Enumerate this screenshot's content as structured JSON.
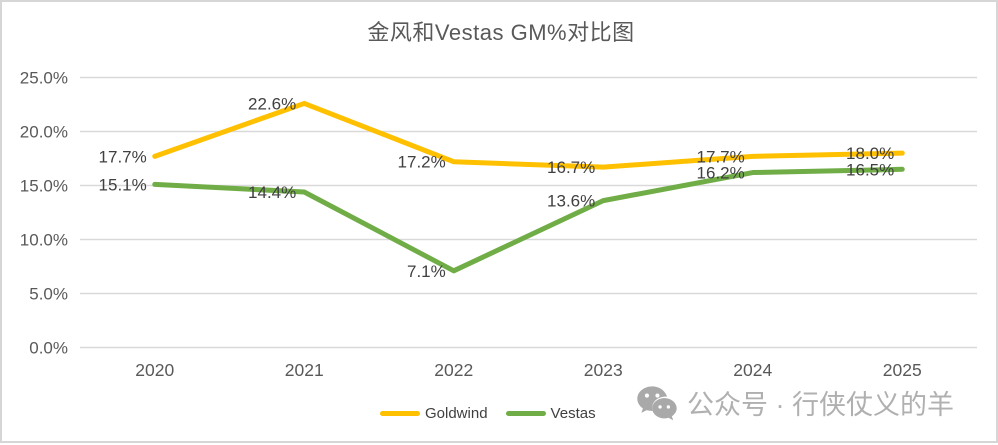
{
  "chart_data": {
    "type": "line",
    "title": "金风和Vestas GM%对比图",
    "categories": [
      "2020",
      "2021",
      "2022",
      "2023",
      "2024",
      "2025"
    ],
    "series": [
      {
        "name": "Goldwind",
        "color": "#FFC000",
        "values": [
          17.7,
          22.6,
          17.2,
          16.7,
          17.7,
          18.0
        ],
        "point_labels": [
          "17.7%",
          "22.6%",
          "17.2%",
          "16.7%",
          "17.7%",
          "18.0%"
        ]
      },
      {
        "name": "Vestas",
        "color": "#70AD47",
        "values": [
          15.1,
          14.4,
          7.1,
          13.6,
          16.2,
          16.5
        ],
        "point_labels": [
          "15.1%",
          "14.4%",
          "7.1%",
          "13.6%",
          "16.2%",
          "16.5%"
        ]
      }
    ],
    "y_axis": {
      "min": 0,
      "max": 25,
      "ticks": [
        {
          "value": 25,
          "label": "25.0%"
        },
        {
          "value": 20,
          "label": "20.0%"
        },
        {
          "value": 15,
          "label": "15.0%"
        },
        {
          "value": 10,
          "label": "10.0%"
        },
        {
          "value": 5,
          "label": "5.0%"
        },
        {
          "value": 0,
          "label": "0.0%"
        }
      ]
    },
    "grid": true,
    "legend_position": "bottom-center"
  },
  "colors": {
    "gridline": "#D9D9D9",
    "axis_text": "#595959",
    "data_label_text": "#404040",
    "title_text": "#595959",
    "legend_text": "#404040",
    "watermark": "#ABABAB",
    "border": "#D6D6D6",
    "background": "#FFFFFF"
  },
  "watermark": {
    "icon": "wechat-icon",
    "text": "公众号 · 行侠仗义的羊"
  }
}
